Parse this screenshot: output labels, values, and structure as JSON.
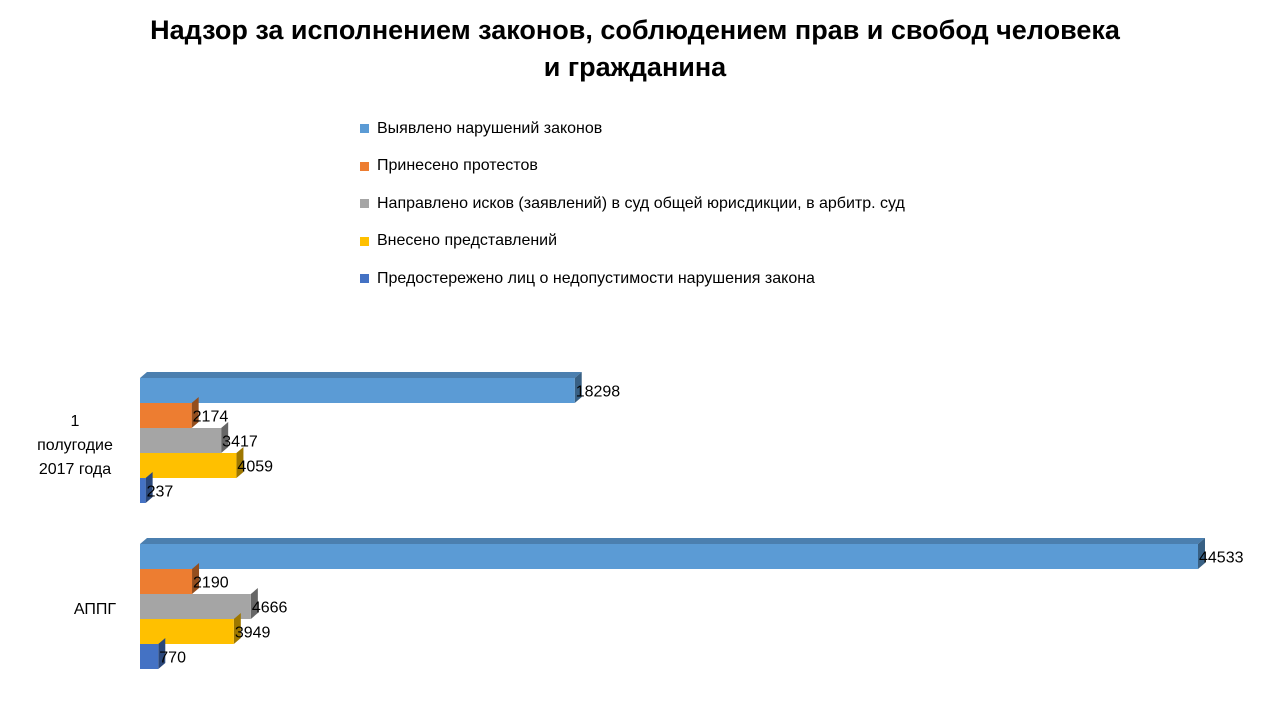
{
  "chart_data": {
    "type": "bar",
    "orientation": "horizontal",
    "title_lines": [
      "Надзор за исполнением законов, соблюдением прав и свобод человека",
      "и гражданина"
    ],
    "categories": [
      {
        "lines": [
          "1",
          "полугодие",
          "2017 года"
        ]
      },
      {
        "lines": [
          "АППГ"
        ]
      }
    ],
    "series": [
      {
        "name": "Выявлено нарушений законов",
        "color": "#5B9BD5",
        "values": [
          18298,
          44533
        ]
      },
      {
        "name": "Принесено протестов",
        "color": "#ED7D31",
        "values": [
          2174,
          2190
        ]
      },
      {
        "name": "Направлено исков (заявлений) в суд общей юрисдикции, в арбитр. суд",
        "color": "#A5A5A5",
        "values": [
          3417,
          4666
        ]
      },
      {
        "name": "Внесено представлений",
        "color": "#FFC000",
        "values": [
          4059,
          3949
        ]
      },
      {
        "name": "Предостережено лиц о  недопустимости нарушения  закона",
        "color": "#4472C4",
        "values": [
          237,
          770
        ]
      }
    ],
    "data_labels": true,
    "style": "3d",
    "legend_position": "top",
    "grid": false,
    "xlim": [
      0,
      44533
    ]
  }
}
